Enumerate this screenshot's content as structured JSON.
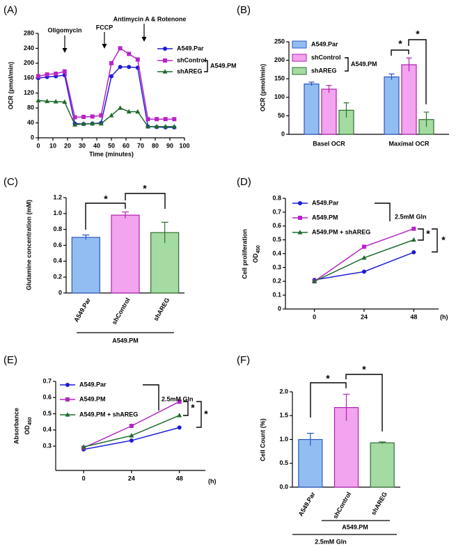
{
  "chart_data": [
    {
      "panel_label": "(A)",
      "type": "line",
      "x_label": "Time (minutes)",
      "y_label": "OCR (pmol/min)",
      "x": [
        0,
        6,
        12,
        18,
        25,
        31,
        37,
        43,
        50,
        56,
        62,
        68,
        75,
        81,
        87,
        93
      ],
      "xlim": [
        0,
        100
      ],
      "xticks": [
        0,
        10,
        20,
        30,
        40,
        50,
        60,
        70,
        80,
        90,
        100
      ],
      "ylim": [
        0,
        280
      ],
      "yticks": [
        0,
        40,
        80,
        120,
        160,
        200,
        240,
        280
      ],
      "series": [
        {
          "name": "A549.Par",
          "color": "#1c1cd4",
          "values": [
            160,
            163,
            165,
            168,
            38,
            37,
            38,
            40,
            165,
            190,
            190,
            188,
            30,
            29,
            28,
            28
          ]
        },
        {
          "name": "shControl",
          "color": "#b624c8",
          "values": [
            165,
            170,
            172,
            178,
            55,
            56,
            57,
            60,
            200,
            240,
            225,
            210,
            50,
            50,
            50,
            50
          ]
        },
        {
          "name": "shAREG",
          "color": "#1e6a2c",
          "values": [
            100,
            98,
            97,
            96,
            35,
            37,
            38,
            38,
            60,
            80,
            70,
            70,
            30,
            30,
            30,
            30
          ]
        }
      ],
      "legend_group_label": "A549.PM",
      "annotations": [
        "Oligomycin",
        "FCCP",
        "Antimycin A & Rotenone"
      ]
    },
    {
      "panel_label": "(B)",
      "type": "bar",
      "y_label": "OCR (pmol/min)",
      "categories": [
        "Basel OCR",
        "Maximal OCR"
      ],
      "ylim": [
        0,
        250
      ],
      "yticks": [
        0,
        50,
        100,
        150,
        200,
        250
      ],
      "series": [
        {
          "name": "A549.Par",
          "color": "#92bdf2",
          "edgecolor": "#2a56c2",
          "values": [
            136,
            155
          ],
          "errors": [
            5,
            8
          ]
        },
        {
          "name": "shControl",
          "color": "#f2a4ee",
          "edgecolor": "#b020b0",
          "values": [
            122,
            188
          ],
          "errors": [
            10,
            18
          ]
        },
        {
          "name": "shAREG",
          "color": "#a4dba2",
          "edgecolor": "#2e6e30",
          "values": [
            65,
            40
          ],
          "errors": [
            20,
            20
          ]
        }
      ],
      "legend_group_label": "A549.PM",
      "annotations": [
        "*",
        "*"
      ]
    },
    {
      "panel_label": "(C)",
      "type": "bar",
      "y_label": "Glutamine concentration (mM)",
      "categories": [
        "A549.Par",
        "shControl",
        "shAREG"
      ],
      "values": [
        0.7,
        0.98,
        0.76
      ],
      "errors": [
        0.03,
        0.04,
        0.13
      ],
      "colors": [
        "#92bdf2",
        "#f2a4ee",
        "#a4dba2"
      ],
      "edgecolors": [
        "#2a56c2",
        "#b020b0",
        "#2e6e30"
      ],
      "ylim": [
        0,
        1.2
      ],
      "yticks": [
        0,
        0.2,
        0.4,
        0.6,
        0.8,
        {
          "value": 1,
          "label": "1.0"
        },
        1.2
      ],
      "group_labels": [
        "A549.PM"
      ],
      "annotations": [
        "*",
        "*"
      ]
    },
    {
      "panel_label": "(D)",
      "type": "line",
      "y_label": "Cell proliferation",
      "y_label_2": "OD",
      "y_label_sub": "450",
      "x": [
        0,
        24,
        48
      ],
      "xlim": [
        -14,
        60
      ],
      "xticks": [
        0,
        24,
        48
      ],
      "x_unit": "(h)",
      "ylim": [
        0,
        0.8
      ],
      "yticks": [
        0,
        0.1,
        0.2,
        0.3,
        0.4,
        0.5,
        0.6,
        0.7,
        0.8
      ],
      "series": [
        {
          "name": "A549.Par",
          "color": "#1c1cd4",
          "values": [
            0.21,
            0.27,
            0.41
          ]
        },
        {
          "name": "A549.PM",
          "color": "#b624c8",
          "values": [
            0.2,
            0.45,
            0.58
          ]
        },
        {
          "name": "A549.PM + shAREG",
          "color": "#1e6a2c",
          "values": [
            0.2,
            0.37,
            0.5
          ]
        }
      ],
      "annotations": [
        "2.5mM Gln",
        "*",
        "*"
      ]
    },
    {
      "panel_label": "(E)",
      "type": "line",
      "y_label": "Absorbance",
      "y_label_2": "OD",
      "y_label_sub": "450",
      "x": [
        0,
        24,
        48
      ],
      "xlim": [
        -14,
        61
      ],
      "xticks": [
        0,
        24,
        48
      ],
      "x_unit": "(h)",
      "ylim": [
        0.15,
        0.7
      ],
      "yticks": [
        0.3,
        0.4,
        0.5,
        0.6,
        0.7
      ],
      "series": [
        {
          "name": "A549.Par",
          "color": "#1c1cd4",
          "values": [
            0.28,
            0.335,
            0.415
          ]
        },
        {
          "name": "A549.PM",
          "color": "#b624c8",
          "values": [
            0.29,
            0.425,
            0.575
          ]
        },
        {
          "name": "A549.PM + shAREG",
          "color": "#1e6a2c",
          "values": [
            0.295,
            0.365,
            0.49
          ]
        }
      ],
      "annotations": [
        "2.5mM Gln",
        "*",
        "*"
      ]
    },
    {
      "panel_label": "(F)",
      "type": "bar",
      "y_label": "Cell Count (%)",
      "categories": [
        "A549.Par",
        "shControl",
        "shAREG"
      ],
      "values": [
        1.0,
        1.67,
        0.93
      ],
      "errors": [
        0.13,
        0.28,
        0.02
      ],
      "colors": [
        "#92bdf2",
        "#f2a4ee",
        "#a4dba2"
      ],
      "edgecolors": [
        "#2a56c2",
        "#b020b0",
        "#2e6e30"
      ],
      "ylim": [
        0,
        2
      ],
      "yticks": [
        {
          "value": 0,
          "label": "0.0"
        },
        0.5,
        {
          "value": 1,
          "label": "1.0"
        },
        1.5,
        {
          "value": 2,
          "label": "2.0"
        }
      ],
      "group_labels": [
        "A549.PM",
        "2.5mM Gln"
      ],
      "annotations": [
        "*",
        "*"
      ]
    }
  ]
}
